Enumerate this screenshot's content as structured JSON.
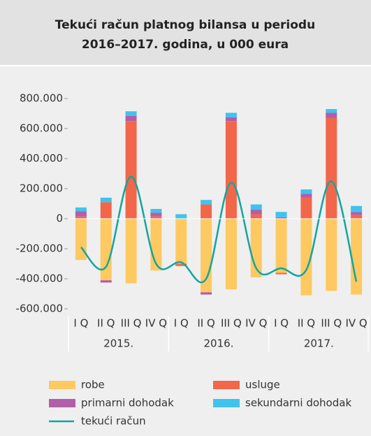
{
  "chart_data": {
    "type": "bar",
    "title": [
      "Tekući račun platnog bilansa u periodu",
      "2016–2017. godina, u 000 eura"
    ],
    "categories": [
      "I Q",
      "II Q",
      "III Q",
      "IV Q",
      "I Q",
      "II Q",
      "III Q",
      "IV Q",
      "I Q",
      "II Q",
      "III Q",
      "IV Q"
    ],
    "years": [
      "2015.",
      "2016.",
      "2017."
    ],
    "series": [
      {
        "name": "robe",
        "color": "#fdc960",
        "values": [
          -275000,
          -410000,
          -430000,
          -345000,
          -300000,
          -490000,
          -470000,
          -390000,
          -360000,
          -510000,
          -480000,
          -505000
        ]
      },
      {
        "name": "usluge",
        "color": "#f2674a",
        "values": [
          15000,
          110000,
          650000,
          15000,
          -15000,
          95000,
          650000,
          30000,
          -10000,
          140000,
          670000,
          25000
        ]
      },
      {
        "name": "primarni dohodak",
        "color": "#b25ea8",
        "values": [
          35000,
          -15000,
          35000,
          25000,
          0,
          -15000,
          25000,
          30000,
          10000,
          25000,
          35000,
          20000
        ]
      },
      {
        "name": "sekundarni dohodak",
        "color": "#3fc3ee",
        "values": [
          25000,
          30000,
          30000,
          25000,
          30000,
          30000,
          30000,
          35000,
          35000,
          30000,
          25000,
          40000
        ]
      },
      {
        "name": "tekući račun",
        "color": "#12a5a0",
        "type": "line",
        "values": [
          -190000,
          -320000,
          280000,
          -300000,
          -290000,
          -400000,
          240000,
          -330000,
          -330000,
          -340000,
          250000,
          -420000
        ]
      }
    ],
    "ylim": [
      -600000,
      800000
    ],
    "yticks": [
      {
        "value": -600000,
        "label": "-600.000"
      },
      {
        "value": -400000,
        "label": "-400.000"
      },
      {
        "value": -200000,
        "label": "-200.000"
      },
      0,
      {
        "value": 200000,
        "label": "200.000"
      },
      {
        "value": 400000,
        "label": "400.000"
      },
      {
        "value": 600000,
        "label": "600.000"
      },
      {
        "value": 800000,
        "label": "800.000"
      }
    ]
  }
}
